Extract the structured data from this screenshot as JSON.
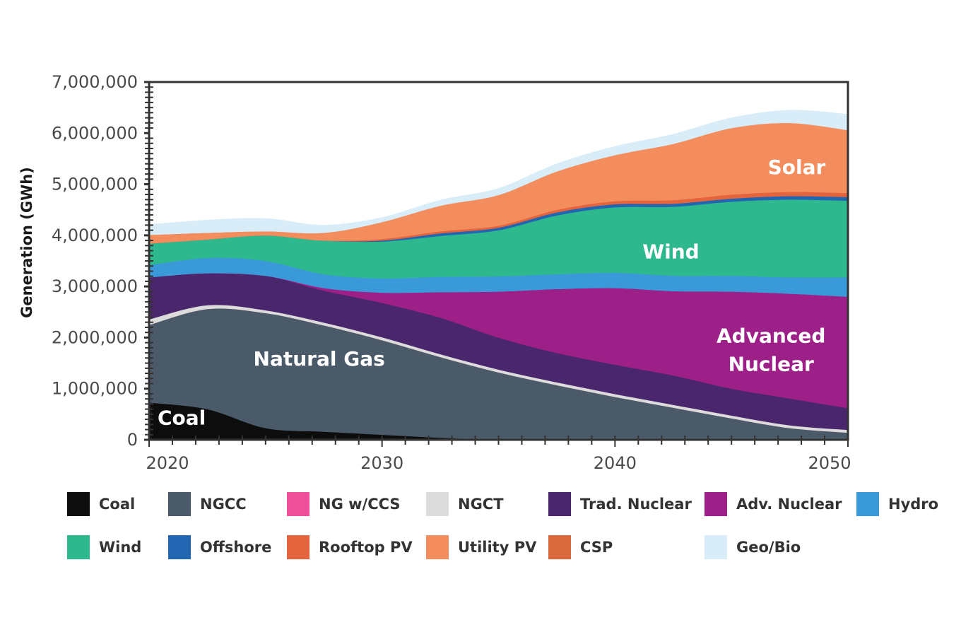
{
  "chart_data": {
    "type": "area",
    "stacked": true,
    "ylabel": "Generation (GWh)",
    "xlabel": "",
    "xlim": [
      2020,
      2050
    ],
    "ylim": [
      0,
      7000000
    ],
    "x_ticks": [
      "2020",
      "2030",
      "2040",
      "2050"
    ],
    "y_ticks": [
      "0",
      "1,000,000",
      "2,000,000",
      "3,000,000",
      "4,000,000",
      "5,000,000",
      "6,000,000",
      "7,000,000"
    ],
    "x": [
      2020,
      2022.5,
      2025,
      2027.5,
      2030,
      2032.5,
      2035,
      2037.5,
      2040,
      2042.5,
      2045,
      2047.5,
      2050
    ],
    "series": [
      {
        "name": "Coal",
        "color": "#0d0d0d",
        "values": [
          730000,
          600000,
          230000,
          160000,
          100000,
          40000,
          0,
          0,
          0,
          0,
          0,
          0,
          0
        ]
      },
      {
        "name": "NGCC",
        "color": "#4a5a69",
        "values": [
          1520000,
          1960000,
          2250000,
          2080000,
          1850000,
          1580000,
          1320000,
          1070000,
          840000,
          630000,
          420000,
          230000,
          140000
        ]
      },
      {
        "name": "NG w/CCS",
        "color": "#f04f9a",
        "values": [
          0,
          0,
          0,
          0,
          0,
          0,
          0,
          0,
          0,
          0,
          0,
          0,
          0
        ]
      },
      {
        "name": "NGCT",
        "color": "#dcdcdc",
        "values": [
          80000,
          50000,
          30000,
          30000,
          30000,
          30000,
          30000,
          30000,
          30000,
          30000,
          30000,
          30000,
          30000
        ]
      },
      {
        "name": "Trad. Nuclear",
        "color": "#4a266d",
        "values": [
          850000,
          650000,
          700000,
          650000,
          700000,
          740000,
          650000,
          600000,
          600000,
          600000,
          550000,
          550000,
          450000
        ]
      },
      {
        "name": "Adv. Nuclear",
        "color": "#9c2087",
        "values": [
          0,
          0,
          0,
          50000,
          200000,
          500000,
          900000,
          1250000,
          1500000,
          1650000,
          1900000,
          2050000,
          2180000
        ]
      },
      {
        "name": "Hydro",
        "color": "#3a9ad9",
        "values": [
          240000,
          300000,
          290000,
          270000,
          280000,
          300000,
          300000,
          290000,
          300000,
          300000,
          310000,
          320000,
          380000
        ]
      },
      {
        "name": "Wind",
        "color": "#2eb88e",
        "values": [
          420000,
          360000,
          500000,
          660000,
          720000,
          800000,
          900000,
          1150000,
          1280000,
          1350000,
          1450000,
          1520000,
          1500000
        ]
      },
      {
        "name": "Offshore",
        "color": "#2266b2",
        "values": [
          0,
          0,
          0,
          0,
          20000,
          50000,
          50000,
          60000,
          60000,
          60000,
          60000,
          70000,
          70000
        ]
      },
      {
        "name": "Rooftop PV",
        "color": "#e4653d",
        "values": [
          0,
          0,
          0,
          0,
          30000,
          40000,
          40000,
          50000,
          60000,
          70000,
          80000,
          80000,
          80000
        ]
      },
      {
        "name": "Utility PV",
        "color": "#f48d5e",
        "values": [
          170000,
          130000,
          80000,
          150000,
          330000,
          500000,
          600000,
          750000,
          900000,
          1100000,
          1300000,
          1350000,
          1230000
        ]
      },
      {
        "name": "CSP",
        "color": "#d9683a",
        "values": [
          0,
          0,
          0,
          0,
          0,
          0,
          0,
          0,
          0,
          0,
          0,
          0,
          0
        ]
      },
      {
        "name": "Geo/Bio",
        "color": "#d8edf8",
        "values": [
          200000,
          250000,
          250000,
          150000,
          90000,
          110000,
          130000,
          150000,
          170000,
          190000,
          200000,
          250000,
          310000
        ]
      }
    ],
    "annotations": [
      {
        "text": "Coal",
        "x": 2021.4,
        "y": 300000
      },
      {
        "text": "Natural Gas",
        "x": 2027.3,
        "y": 1450000
      },
      {
        "text": "Advanced",
        "x": 2046.7,
        "y": 1900000
      },
      {
        "text": "Nuclear",
        "x": 2046.7,
        "y": 1350000
      },
      {
        "text": "Wind",
        "x": 2042.4,
        "y": 3550000
      },
      {
        "text": "Solar",
        "x": 2047.8,
        "y": 5200000
      }
    ],
    "legend": {
      "placement": "bottom",
      "rows": [
        [
          "Coal",
          "NGCC",
          "NG w/CCS",
          "NGCT",
          "Trad. Nuclear",
          "Adv. Nuclear",
          "Hydro"
        ],
        [
          "Wind",
          "Offshore",
          "Rooftop PV",
          "Utility PV",
          "CSP",
          "Geo/Bio"
        ]
      ]
    }
  }
}
